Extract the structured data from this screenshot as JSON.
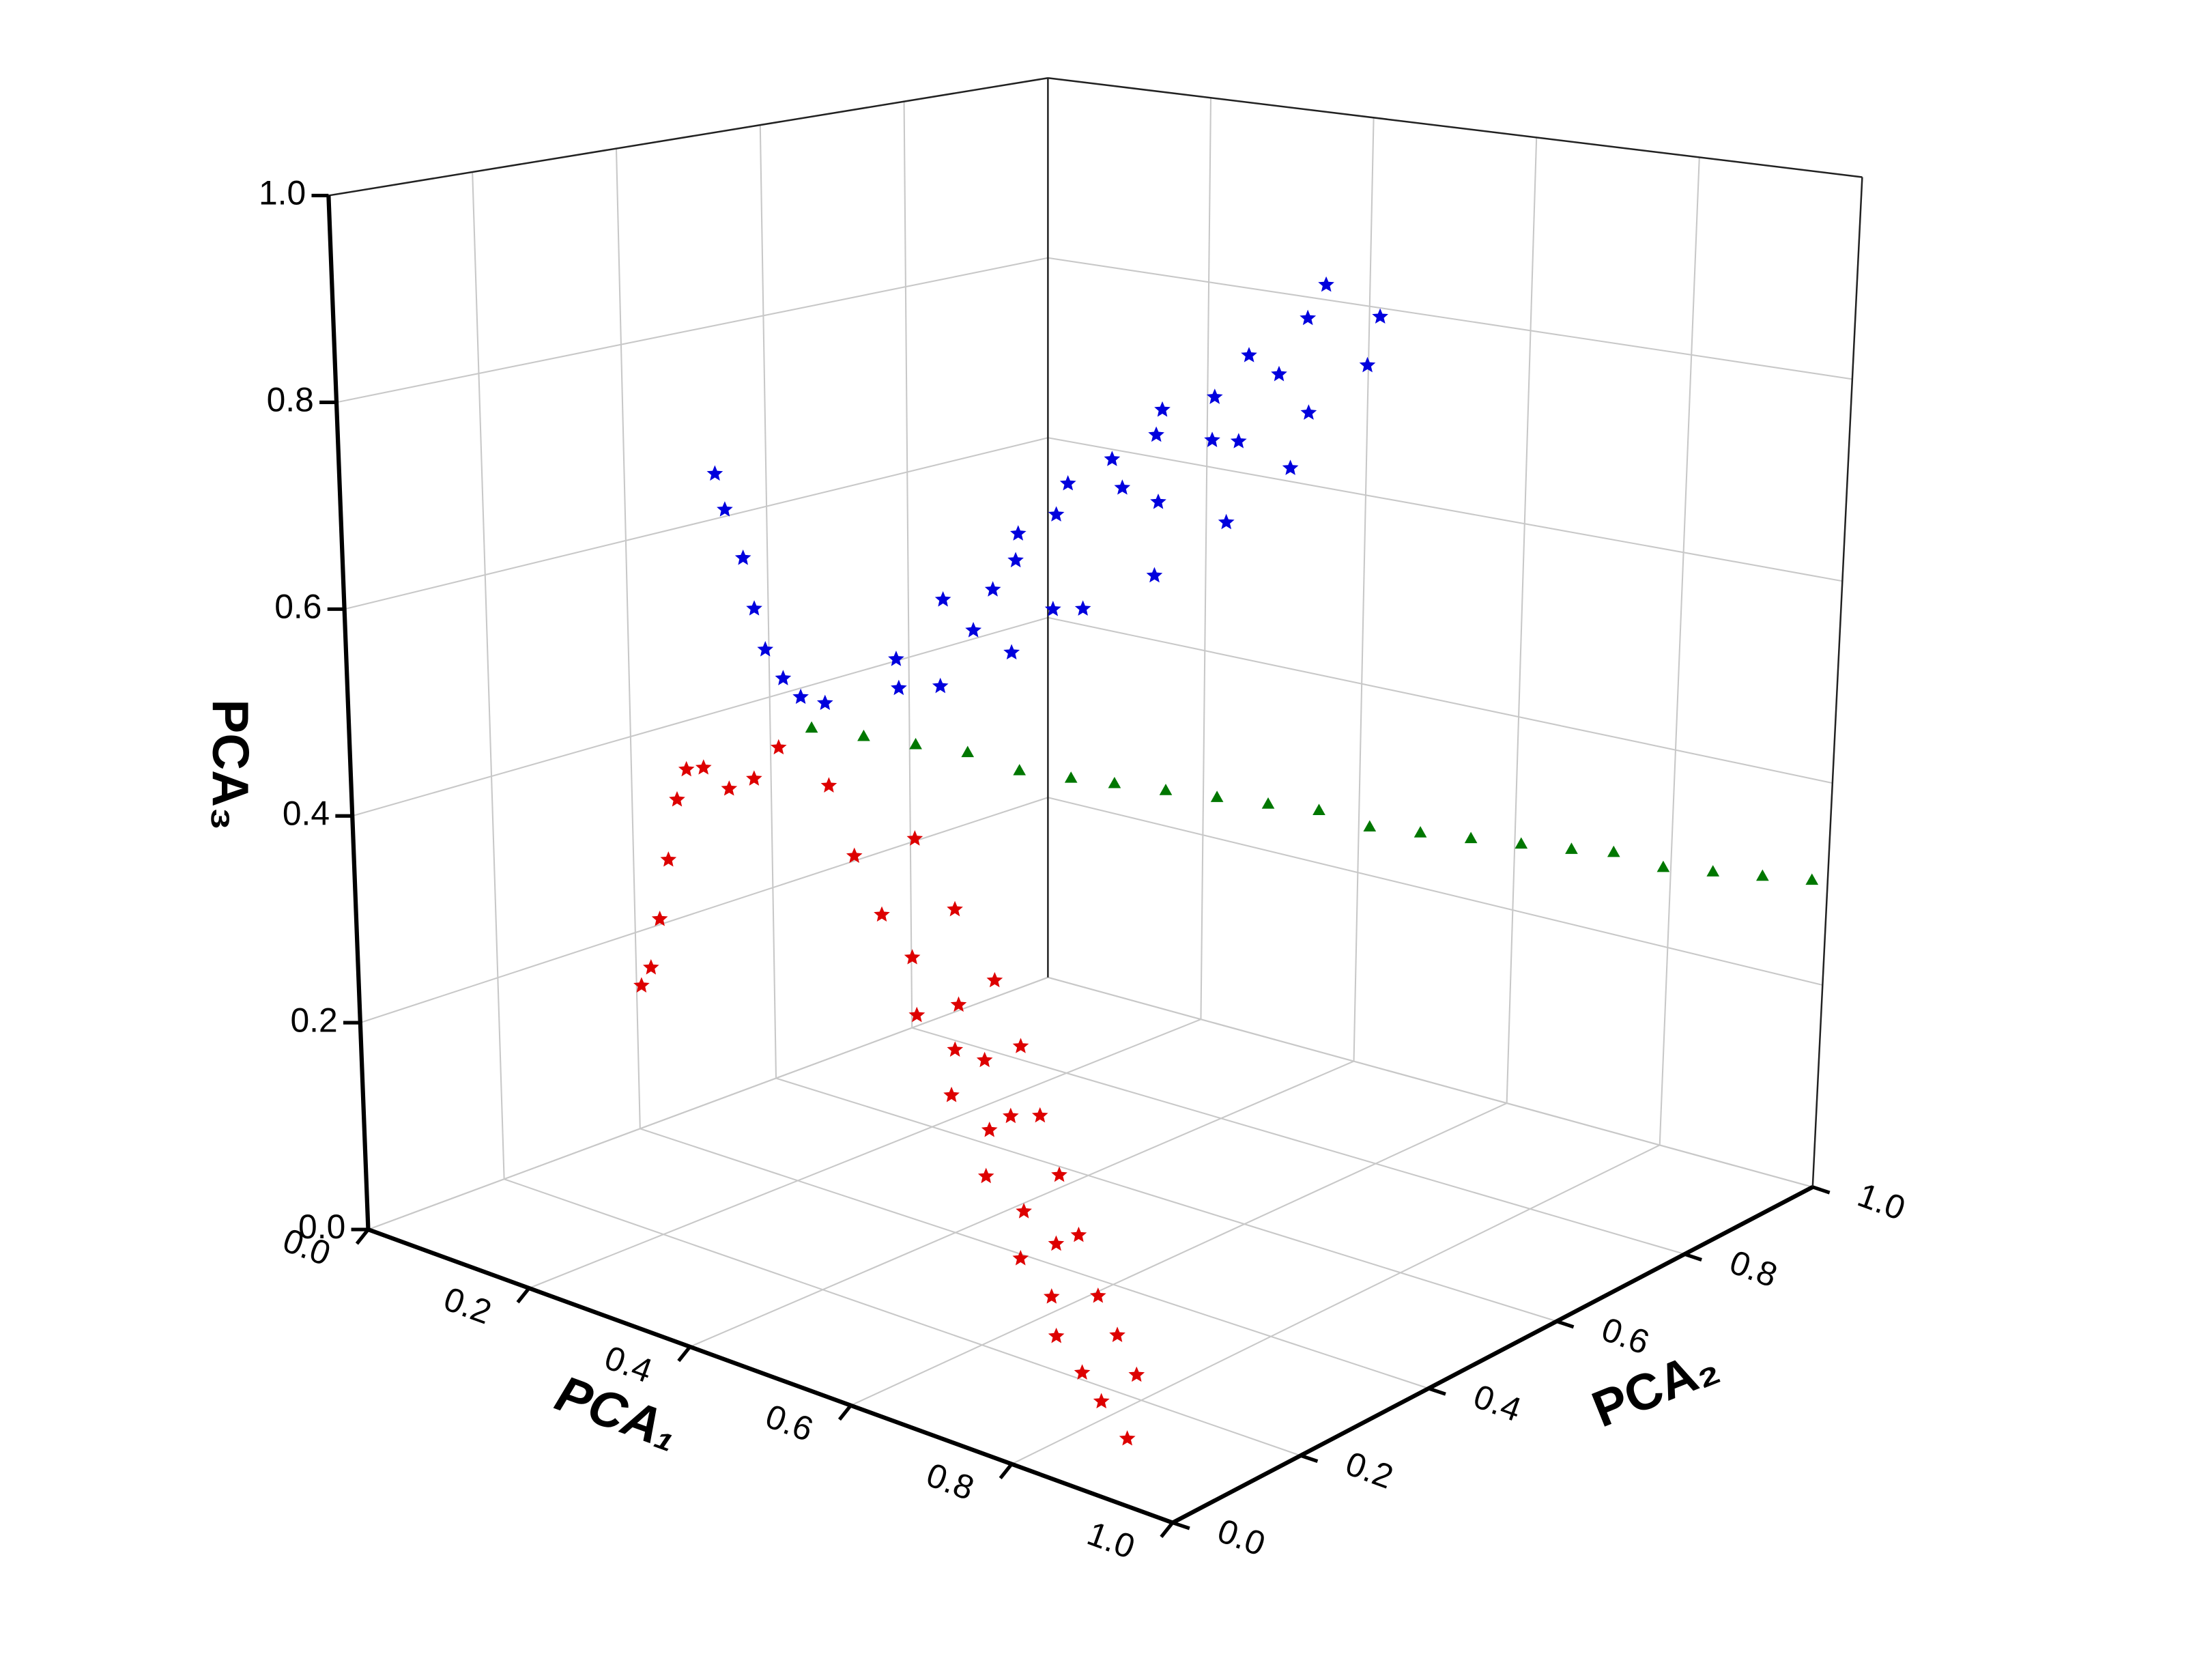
{
  "chart_data": {
    "type": "scatter3d",
    "xlabel": "PCA₁",
    "ylabel": "PCA₂",
    "zlabel": "PCA₃",
    "xlim": [
      0,
      1
    ],
    "ylim": [
      0,
      1
    ],
    "zlim": [
      0,
      1
    ],
    "xticks": [
      {
        "value": 0,
        "label": "0.0"
      },
      0.2,
      0.4,
      0.6,
      0.8,
      {
        "value": 1,
        "label": "1.0"
      }
    ],
    "yticks": [
      {
        "value": 0,
        "label": "0.0"
      },
      0.2,
      0.4,
      0.6,
      0.8,
      {
        "value": 1,
        "label": "1.0"
      }
    ],
    "zticks": [
      {
        "value": 0,
        "label": "0.0"
      },
      0.2,
      0.4,
      0.6,
      0.8,
      {
        "value": 1,
        "label": "1.0"
      }
    ],
    "grid": true,
    "series": [
      {
        "color": "#0000dd",
        "marker": "star",
        "x": [
          0.2,
          0.22,
          0.25,
          0.28,
          0.31,
          0.34,
          0.37,
          0.4,
          0.42,
          0.41,
          0.44,
          0.43,
          0.46,
          0.45,
          0.47,
          0.46,
          0.48,
          0.45,
          0.5,
          0.52,
          0.5,
          0.53,
          0.52,
          0.5,
          0.48,
          0.46,
          0.44,
          0.43,
          0.44,
          0.4,
          0.42,
          0.45,
          0.47,
          0.41,
          0.5,
          0.46,
          0.43,
          0.48,
          0.44
        ],
        "y": [
          0.3,
          0.29,
          0.28,
          0.26,
          0.24,
          0.23,
          0.22,
          0.22,
          0.3,
          0.38,
          0.45,
          0.52,
          0.58,
          0.64,
          0.7,
          0.76,
          0.82,
          0.88,
          0.9,
          0.86,
          0.8,
          0.74,
          0.66,
          0.58,
          0.5,
          0.42,
          0.34,
          0.6,
          0.66,
          0.5,
          0.44,
          0.72,
          0.62,
          0.56,
          0.7,
          0.48,
          0.4,
          0.78,
          0.28
        ],
        "z": [
          0.72,
          0.69,
          0.65,
          0.61,
          0.58,
          0.56,
          0.55,
          0.55,
          0.58,
          0.62,
          0.65,
          0.68,
          0.7,
          0.74,
          0.77,
          0.8,
          0.83,
          0.85,
          0.82,
          0.78,
          0.74,
          0.7,
          0.66,
          0.62,
          0.6,
          0.57,
          0.55,
          0.72,
          0.76,
          0.66,
          0.62,
          0.72,
          0.68,
          0.7,
          0.73,
          0.6,
          0.59,
          0.78,
          0.56
        ]
      },
      {
        "color": "#dd0000",
        "marker": "star",
        "x": [
          0.05,
          0.08,
          0.11,
          0.14,
          0.17,
          0.2,
          0.23,
          0.27,
          0.31,
          0.35,
          0.42,
          0.45,
          0.5,
          0.52,
          0.55,
          0.58,
          0.6,
          0.63,
          0.65,
          0.68,
          0.7,
          0.73,
          0.76,
          0.8,
          0.84,
          0.88,
          0.86,
          0.82,
          0.78,
          0.74,
          0.7,
          0.66,
          0.62,
          0.58,
          0.54,
          0.5,
          0.56,
          0.64,
          0.72,
          0.6
        ],
        "y": [
          0.35,
          0.33,
          0.31,
          0.29,
          0.27,
          0.25,
          0.24,
          0.23,
          0.22,
          0.21,
          0.2,
          0.2,
          0.18,
          0.2,
          0.17,
          0.19,
          0.16,
          0.18,
          0.15,
          0.17,
          0.14,
          0.15,
          0.12,
          0.11,
          0.09,
          0.08,
          0.12,
          0.14,
          0.16,
          0.18,
          0.2,
          0.22,
          0.24,
          0.25,
          0.24,
          0.23,
          0.22,
          0.2,
          0.17,
          0.21
        ],
        "z": [
          0.17,
          0.2,
          0.26,
          0.33,
          0.4,
          0.44,
          0.45,
          0.44,
          0.46,
          0.5,
          0.48,
          0.42,
          0.38,
          0.34,
          0.3,
          0.27,
          0.24,
          0.21,
          0.18,
          0.15,
          0.12,
          0.09,
          0.07,
          0.05,
          0.04,
          0.02,
          0.06,
          0.08,
          0.1,
          0.14,
          0.18,
          0.22,
          0.27,
          0.32,
          0.38,
          0.44,
          0.3,
          0.22,
          0.13,
          0.26
        ]
      },
      {
        "color": "#007700",
        "marker": "triangle",
        "x": [
          0.4,
          0.43,
          0.46,
          0.49,
          0.52,
          0.55,
          0.57,
          0.6,
          0.63,
          0.66,
          0.69,
          0.72,
          0.75,
          0.78,
          0.81,
          0.84,
          0.86,
          0.89,
          0.92,
          0.95,
          0.98
        ],
        "y": [
          0.2,
          0.24,
          0.28,
          0.32,
          0.36,
          0.4,
          0.44,
          0.48,
          0.52,
          0.56,
          0.6,
          0.64,
          0.68,
          0.72,
          0.76,
          0.8,
          0.84,
          0.88,
          0.92,
          0.96,
          1.0
        ],
        "z": [
          0.53,
          0.52,
          0.51,
          0.5,
          0.48,
          0.47,
          0.46,
          0.45,
          0.44,
          0.43,
          0.42,
          0.4,
          0.39,
          0.38,
          0.37,
          0.36,
          0.35,
          0.33,
          0.32,
          0.31,
          0.3
        ]
      }
    ]
  }
}
